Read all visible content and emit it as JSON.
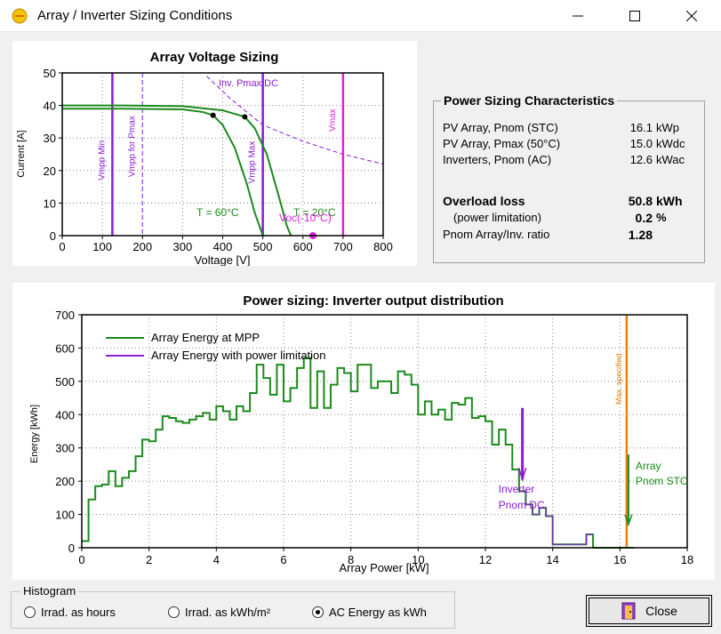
{
  "window": {
    "title": "Array / Inverter Sizing Conditions"
  },
  "voltage_chart": {
    "title": "Array Voltage Sizing",
    "xlabel": "Voltage [V]",
    "ylabel": "Current [A]",
    "x_ticks": [
      "0",
      "100",
      "200",
      "300",
      "400",
      "500",
      "600",
      "700",
      "800"
    ],
    "y_ticks": [
      "0",
      "10",
      "20",
      "30",
      "40",
      "50"
    ],
    "labels": {
      "vmpp_min": "Vmpp Min",
      "vmpp_for_pmax": "Vmpp for Pmax",
      "vmpp_max": "Vmpp Max",
      "vmax": "Vmax",
      "inv_pmax_dc": "Inv. Pmax DC",
      "t60": "T = 60°C",
      "t20": "T = 20°C",
      "voc": "Voc(-10°C)"
    }
  },
  "chart_data": [
    {
      "type": "line",
      "title": "Array Voltage Sizing",
      "xlabel": "Voltage [V]",
      "ylabel": "Current [A]",
      "xlim": [
        0,
        800
      ],
      "ylim": [
        0,
        50
      ],
      "series": [
        {
          "name": "T = 60°C",
          "x": [
            0,
            150,
            300,
            350,
            376,
            400,
            430,
            460,
            480,
            500
          ],
          "y": [
            39,
            39,
            38.8,
            38,
            37,
            34,
            27,
            16,
            7,
            0
          ]
        },
        {
          "name": "T = 20°C",
          "x": [
            0,
            150,
            300,
            400,
            455,
            480,
            510,
            540,
            560,
            570
          ],
          "y": [
            40,
            40,
            39.8,
            38.5,
            36.5,
            33,
            25,
            12,
            3,
            0
          ]
        },
        {
          "name": "Inv. Pmax DC",
          "x": [
            360,
            420,
            500,
            600,
            700,
            800
          ],
          "y": [
            49,
            42,
            34,
            29,
            25,
            22
          ]
        }
      ],
      "vertical_lines": [
        {
          "name": "Vmpp Min",
          "x": 125
        },
        {
          "name": "Vmpp for Pmax",
          "x": 200
        },
        {
          "name": "Vmpp Max",
          "x": 500
        },
        {
          "name": "Vmax",
          "x": 700
        }
      ],
      "points": [
        {
          "x": 376,
          "y": 37
        },
        {
          "x": 455,
          "y": 36.5
        },
        {
          "name": "Voc(-10°C)",
          "x": 625,
          "y": 0
        }
      ]
    },
    {
      "type": "line",
      "title": "Power sizing: Inverter output distribution",
      "xlabel": "Array Power [kW]",
      "ylabel": "Energy [kWh]",
      "xlim": [
        0,
        18
      ],
      "ylim": [
        0,
        700
      ],
      "bin_width": 0.2,
      "series": [
        {
          "name": "Array Energy at MPP",
          "x": [
            0.0,
            0.2,
            0.4,
            0.6,
            0.8,
            1.0,
            1.2,
            1.4,
            1.6,
            1.8,
            2.0,
            2.2,
            2.4,
            2.6,
            2.8,
            3.0,
            3.2,
            3.4,
            3.6,
            3.8,
            4.0,
            4.2,
            4.4,
            4.6,
            4.8,
            5.0,
            5.2,
            5.4,
            5.6,
            5.8,
            6.0,
            6.2,
            6.4,
            6.6,
            6.8,
            7.0,
            7.2,
            7.4,
            7.6,
            7.8,
            8.0,
            8.2,
            8.4,
            8.6,
            8.8,
            9.0,
            9.2,
            9.4,
            9.6,
            9.8,
            10.0,
            10.2,
            10.4,
            10.6,
            10.8,
            11.0,
            11.2,
            11.4,
            11.6,
            11.8,
            12.0,
            12.2,
            12.4,
            12.6,
            12.8,
            13.0,
            13.2,
            13.4,
            13.6,
            13.8,
            14.0,
            14.2,
            14.4,
            14.6,
            14.8,
            15.0,
            15.2,
            15.4,
            15.6,
            15.8,
            16.0,
            16.2
          ],
          "y": [
            20,
            145,
            185,
            190,
            230,
            185,
            210,
            230,
            275,
            325,
            320,
            355,
            395,
            390,
            380,
            375,
            385,
            395,
            405,
            385,
            425,
            410,
            385,
            425,
            410,
            465,
            550,
            510,
            460,
            550,
            440,
            480,
            540,
            570,
            420,
            530,
            420,
            490,
            540,
            525,
            470,
            550,
            550,
            480,
            500,
            500,
            465,
            530,
            520,
            490,
            400,
            440,
            400,
            415,
            385,
            435,
            430,
            450,
            390,
            395,
            380,
            310,
            355,
            310,
            235,
            170,
            130,
            100,
            120,
            95,
            10,
            10,
            10,
            10,
            10,
            40,
            0,
            0,
            0,
            0,
            0,
            0
          ]
        },
        {
          "name": "Array Energy with power limitation",
          "x": [
            13.1
          ],
          "y": [
            420
          ]
        }
      ],
      "annotations": [
        {
          "text": "Inverter Pnom DC",
          "x": 13.1
        },
        {
          "text": "Max. specified",
          "x": 16.2
        },
        {
          "text": "Array Pnom STC",
          "x": 16.2
        }
      ]
    }
  ],
  "power_chart": {
    "title": "Power sizing: Inverter output distribution",
    "xlabel": "Array Power [kW]",
    "ylabel": "Energy [kWh]",
    "x_ticks": [
      "0",
      "2",
      "4",
      "6",
      "8",
      "10",
      "12",
      "14",
      "16",
      "18"
    ],
    "y_ticks": [
      "0",
      "100",
      "200",
      "300",
      "400",
      "500",
      "600",
      "700"
    ],
    "legend": [
      "Array Energy at MPP",
      "Array Energy with power limitation"
    ],
    "labels": {
      "inverter_pnom_dc_1": "Inverter",
      "inverter_pnom_dc_2": "Pnom DC",
      "array_pnom_stc_1": "Array",
      "array_pnom_stc_2": "Pnom STC",
      "max_specified": "Max. specified"
    }
  },
  "power_sizing": {
    "title": "Power Sizing Characteristics",
    "rows": [
      {
        "label": "PV Array, Pnom (STC)",
        "value": "16.1",
        "unit": "kWp"
      },
      {
        "label": "PV Array, Pmax (50°C)",
        "value": "15.0",
        "unit": "kWdc"
      },
      {
        "label": "Inverters, Pnom (AC)",
        "value": "12.6",
        "unit": "kWac"
      }
    ],
    "overload_label": "Overload loss",
    "overload_value": "50.8",
    "overload_unit": "kWh",
    "limitation_label": "(power limitation)",
    "limitation_value": "0.2",
    "limitation_unit": "%",
    "ratio_label": "Pnom Array/Inv. ratio",
    "ratio_value": "1.28"
  },
  "histogram": {
    "title": "Histogram",
    "options": [
      "Irrad. as hours",
      "Irrad. as kWh/m²",
      "AC Energy as kWh"
    ],
    "selected": "AC Energy as kWh"
  },
  "close_label": "Close",
  "colors": {
    "green": "#1c8a1c",
    "purple": "#8a1cd6",
    "magenta": "#e020e0",
    "orange": "#e8820a"
  }
}
